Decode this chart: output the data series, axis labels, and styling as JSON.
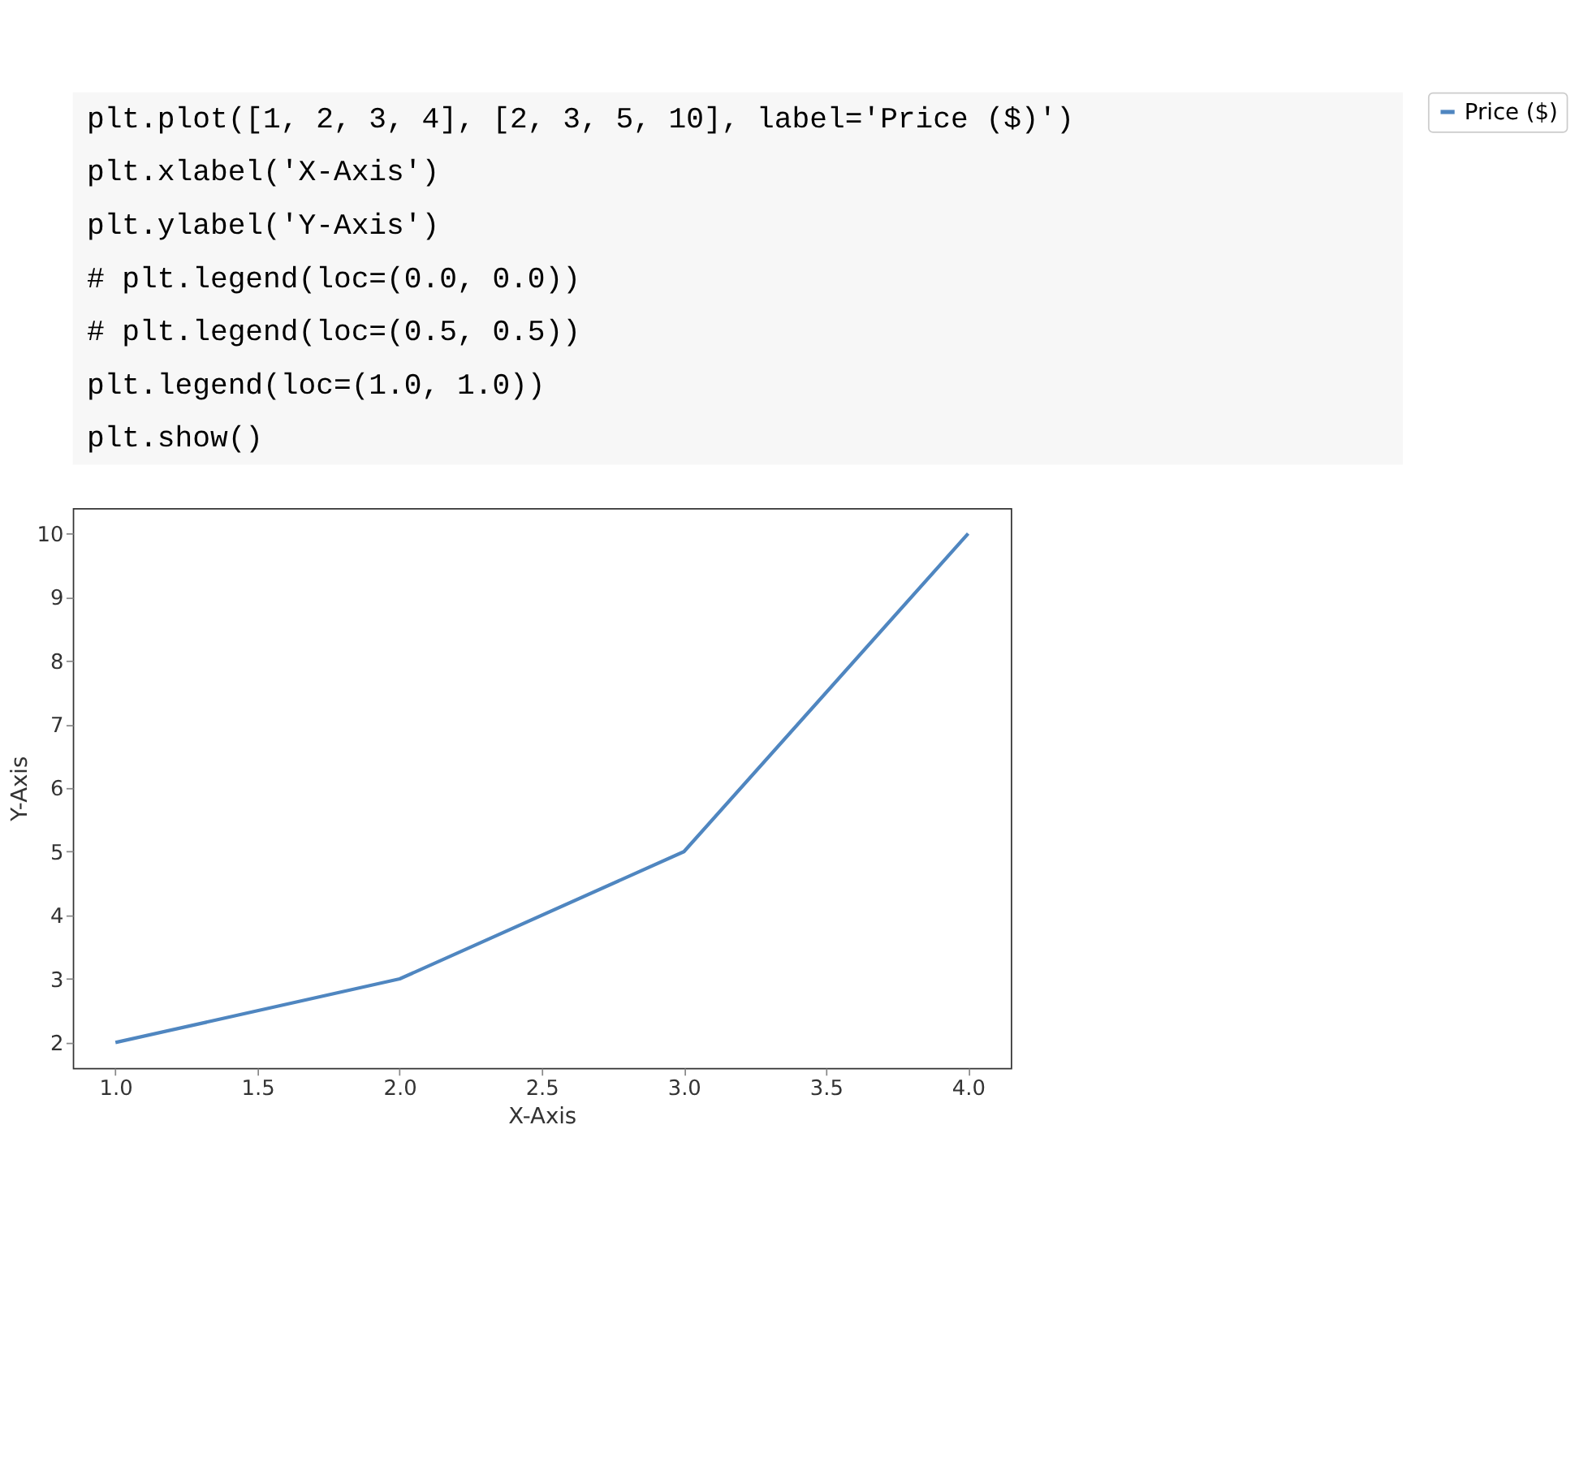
{
  "chart_data": {
    "type": "line",
    "annotations": [
      "plt.plot([1, 2, 3, 4], [2, 3, 5, 10], label='Price ($)')",
      "plt.xlabel('X-Axis')",
      "plt.ylabel('Y-Axis')",
      "# plt.legend(loc=(0.0, 0.0))",
      "# plt.legend(loc=(0.5, 0.5))",
      "plt.legend(loc=(1.0, 1.0))",
      "plt.show()"
    ],
    "xlabel": "X-Axis",
    "ylabel": "Y-Axis",
    "x": [
      1,
      2,
      3,
      4
    ],
    "series": [
      {
        "name": "Price ($)",
        "color": "#4f86c0",
        "values": [
          2,
          3,
          5,
          10
        ]
      }
    ],
    "xlim": [
      0.85,
      4.15
    ],
    "xticks": [
      {
        "value": 1,
        "label": "1.0"
      },
      1.5,
      {
        "value": 2,
        "label": "2.0"
      },
      2.5,
      {
        "value": 3,
        "label": "3.0"
      },
      3.5,
      {
        "value": 4,
        "label": "4.0"
      }
    ],
    "ylim": [
      1.6,
      10.4
    ],
    "yticks": [
      2,
      3,
      4,
      5,
      6,
      7,
      8,
      9,
      10
    ],
    "legend": "top right",
    "grid": false,
    "marker": "none",
    "line_style": "solid"
  }
}
